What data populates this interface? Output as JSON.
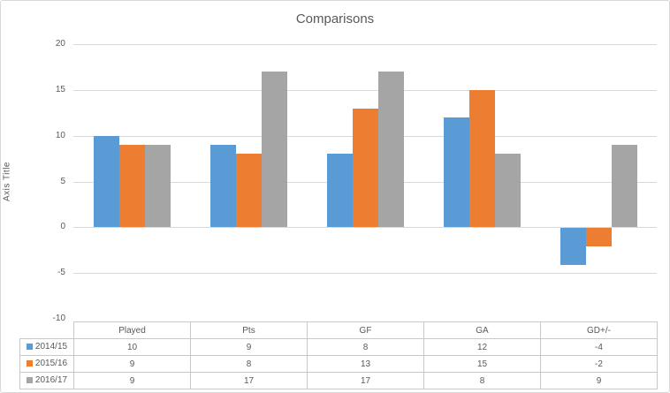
{
  "frame": {
    "background": "#FFFFFF",
    "border_color": "#D8D8D8"
  },
  "chart_data": {
    "type": "bar",
    "title": "Comparisons",
    "xlabel": "",
    "ylabel": "Axis Title",
    "categories": [
      "Played",
      "Pts",
      "GF",
      "GA",
      "GD+/-"
    ],
    "series": [
      {
        "name": "2014/15",
        "color": "#5B9BD5",
        "values": [
          10,
          9,
          8,
          12,
          -4
        ]
      },
      {
        "name": "2015/16",
        "color": "#ED7D31",
        "values": [
          9,
          8,
          13,
          15,
          -2
        ]
      },
      {
        "name": "2016/17",
        "color": "#A5A5A5",
        "values": [
          9,
          17,
          17,
          8,
          9
        ]
      }
    ],
    "ylim": [
      -10,
      20
    ],
    "yticks": [
      20,
      15,
      10,
      5,
      0,
      -5,
      -10
    ],
    "grid": true,
    "gridline_color": "#D9D9D9",
    "text_color": "#595959",
    "legend_position": "data-table"
  },
  "data_table": {
    "column_headers": [
      "Played",
      "Pts",
      "GF",
      "GA",
      "GD+/-"
    ],
    "rows": [
      {
        "legend": "2014/15",
        "key_color": "#5B9BD5",
        "cells": [
          "10",
          "9",
          "8",
          "12",
          "-4"
        ]
      },
      {
        "legend": "2015/16",
        "key_color": "#ED7D31",
        "cells": [
          "9",
          "8",
          "13",
          "15",
          "-2"
        ]
      },
      {
        "legend": "2016/17",
        "key_color": "#A5A5A5",
        "cells": [
          "9",
          "17",
          "17",
          "8",
          "9"
        ]
      }
    ],
    "border_color": "#C8C8C8"
  }
}
